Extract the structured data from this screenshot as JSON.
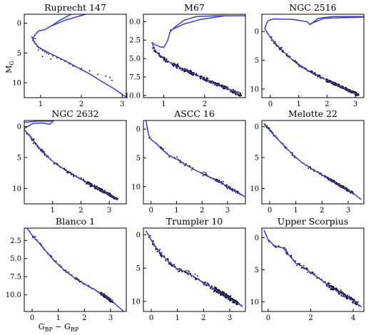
{
  "figure": {
    "ylabel": "M_G",
    "xlabel": "G_BP − G_RP",
    "colors": {
      "model": "#3b3bd6",
      "stars": "#000000",
      "frame": "#000000"
    }
  },
  "chart_data": [
    {
      "type": "scatter",
      "title": "Ruprecht 147",
      "xlim": [
        0.6,
        3.1
      ],
      "ylim": [
        12.5,
        -1.5
      ],
      "xticks": [
        1,
        2,
        3
      ],
      "yticks": [
        0,
        5,
        10
      ],
      "model": [
        [
          0.78,
          2.2
        ],
        [
          0.85,
          3.3
        ],
        [
          0.95,
          4.0
        ],
        [
          1.1,
          4.6
        ],
        [
          1.3,
          5.3
        ],
        [
          1.6,
          6.3
        ],
        [
          2.0,
          7.8
        ],
        [
          2.2,
          8.5
        ],
        [
          2.5,
          9.8
        ],
        [
          2.8,
          11.0
        ],
        [
          3.1,
          12.4
        ]
      ],
      "model_upper": [
        [
          0.8,
          3.0
        ],
        [
          0.85,
          2.1
        ],
        [
          0.95,
          1.3
        ],
        [
          1.1,
          1.1
        ],
        [
          1.25,
          0.5
        ],
        [
          1.45,
          -0.4
        ],
        [
          1.75,
          -1.5
        ]
      ],
      "model_upper2": [
        [
          1.25,
          0.5
        ],
        [
          1.6,
          -0.5
        ],
        [
          2.1,
          -1.5
        ]
      ],
      "stars": [
        [
          0.8,
          2.4
        ],
        [
          0.82,
          2.8
        ],
        [
          0.85,
          3.1
        ],
        [
          0.88,
          3.4
        ],
        [
          0.9,
          3.6
        ],
        [
          0.92,
          3.9
        ],
        [
          0.95,
          4.1
        ],
        [
          1.0,
          4.3
        ],
        [
          1.05,
          4.6
        ],
        [
          1.1,
          4.8
        ],
        [
          1.15,
          5.0
        ],
        [
          1.2,
          5.2
        ],
        [
          1.3,
          5.5
        ],
        [
          1.4,
          5.8
        ],
        [
          1.5,
          6.1
        ],
        [
          1.6,
          6.4
        ],
        [
          1.7,
          6.8
        ],
        [
          1.8,
          7.2
        ],
        [
          2.0,
          7.6
        ],
        [
          2.2,
          8.0
        ],
        [
          2.4,
          8.6
        ],
        [
          2.6,
          8.9
        ],
        [
          2.7,
          9.1
        ],
        [
          2.75,
          9.6
        ],
        [
          1.05,
          5.6
        ],
        [
          1.25,
          6.0
        ],
        [
          0.95,
          4.5
        ],
        [
          0.87,
          2.6
        ]
      ]
    },
    {
      "type": "scatter",
      "title": "M67",
      "xlim": [
        0.5,
        3.0
      ],
      "ylim": [
        10.3,
        -1.0
      ],
      "xticks": [
        1,
        2
      ],
      "yticks": [
        0.0,
        2.5,
        5.0,
        7.5,
        10.0
      ],
      "model": [
        [
          0.72,
          2.8
        ],
        [
          0.75,
          3.6
        ],
        [
          0.85,
          4.3
        ],
        [
          1.0,
          5.0
        ],
        [
          1.2,
          5.7
        ],
        [
          1.5,
          6.5
        ],
        [
          1.9,
          7.5
        ],
        [
          2.3,
          8.5
        ],
        [
          2.6,
          9.2
        ],
        [
          2.9,
          10.0
        ]
      ],
      "model_upper": [
        [
          0.7,
          2.8
        ],
        [
          0.78,
          3.1
        ],
        [
          0.9,
          3.4
        ],
        [
          1.0,
          3.5
        ],
        [
          1.1,
          2.5
        ],
        [
          1.15,
          1.4
        ],
        [
          1.3,
          0.6
        ],
        [
          1.5,
          -0.2
        ],
        [
          1.8,
          -0.7
        ],
        [
          2.3,
          -0.8
        ],
        [
          3.0,
          -0.8
        ]
      ],
      "model_upper2": [
        [
          1.15,
          1.2
        ],
        [
          1.5,
          0.3
        ],
        [
          1.9,
          -0.3
        ],
        [
          2.5,
          -0.8
        ]
      ],
      "stars": "m67"
    },
    {
      "type": "scatter",
      "title": "NGC 2516",
      "xlim": [
        -0.3,
        3.3
      ],
      "ylim": [
        11.5,
        -3.0
      ],
      "xticks": [
        0,
        1,
        2,
        3
      ],
      "yticks": [
        0,
        5,
        10
      ],
      "model": [
        [
          -0.2,
          -0.5
        ],
        [
          0.0,
          1.0
        ],
        [
          0.2,
          2.2
        ],
        [
          0.4,
          3.2
        ],
        [
          0.6,
          4.1
        ],
        [
          0.8,
          5.0
        ],
        [
          1.0,
          5.8
        ],
        [
          1.3,
          6.7
        ],
        [
          1.6,
          7.5
        ],
        [
          2.0,
          8.5
        ],
        [
          2.4,
          9.4
        ],
        [
          2.8,
          10.3
        ],
        [
          3.1,
          11.0
        ]
      ],
      "model_upper": [
        [
          -0.2,
          -0.5
        ],
        [
          -0.1,
          -1.8
        ],
        [
          0.1,
          -2.2
        ],
        [
          0.8,
          -2.1
        ],
        [
          1.3,
          -1.7
        ],
        [
          1.4,
          -1.2
        ],
        [
          1.7,
          -2.3
        ],
        [
          2.2,
          -2.6
        ],
        [
          3.3,
          -2.6
        ]
      ],
      "model_upper2": [
        [
          1.4,
          -1.3
        ],
        [
          1.9,
          -2.3
        ],
        [
          3.3,
          -2.5
        ]
      ],
      "stars": "ngc2516"
    },
    {
      "type": "scatter",
      "title": "NGC 2632",
      "xlim": [
        0.0,
        3.6
      ],
      "ylim": [
        12.5,
        -1.0
      ],
      "xticks": [
        1,
        2,
        3
      ],
      "yticks": [
        0,
        5,
        10
      ],
      "model": [
        [
          0.0,
          0.5
        ],
        [
          0.2,
          1.5
        ],
        [
          0.4,
          2.8
        ],
        [
          0.7,
          4.3
        ],
        [
          1.0,
          5.6
        ],
        [
          1.4,
          6.9
        ],
        [
          1.8,
          8.0
        ],
        [
          2.2,
          9.0
        ],
        [
          2.6,
          10.0
        ],
        [
          3.0,
          11.0
        ],
        [
          3.3,
          11.8
        ]
      ],
      "model_upper": [
        [
          0.0,
          0.3
        ],
        [
          0.3,
          -0.5
        ],
        [
          0.6,
          -0.6
        ],
        [
          0.9,
          -0.4
        ],
        [
          1.05,
          -1.0
        ]
      ],
      "model_upper2": [
        [
          0.0,
          -0.7
        ],
        [
          0.5,
          -0.9
        ],
        [
          1.0,
          -0.9
        ]
      ],
      "stars": "ngc2632"
    },
    {
      "type": "scatter",
      "title": "ASCC 16",
      "xlim": [
        -0.3,
        3.7
      ],
      "ylim": [
        13.0,
        -1.5
      ],
      "xticks": [
        0,
        1,
        2,
        3
      ],
      "yticks": [
        0,
        5,
        10
      ],
      "model": [
        [
          -0.2,
          -1.5
        ],
        [
          -0.1,
          1.0
        ],
        [
          0.0,
          1.8
        ],
        [
          0.2,
          2.5
        ],
        [
          0.5,
          3.8
        ],
        [
          0.7,
          4.6
        ],
        [
          1.0,
          5.2
        ],
        [
          1.4,
          6.3
        ],
        [
          1.8,
          7.3
        ],
        [
          2.2,
          8.1
        ],
        [
          2.6,
          9.0
        ],
        [
          3.0,
          10.0
        ],
        [
          3.4,
          11.0
        ],
        [
          3.7,
          11.8
        ]
      ],
      "stars": "ascc16"
    },
    {
      "type": "scatter",
      "title": "Melotte 22",
      "xlim": [
        -0.3,
        3.6
      ],
      "ylim": [
        12.5,
        -1.0
      ],
      "xticks": [
        0,
        1,
        2,
        3
      ],
      "yticks": [
        0,
        5,
        10
      ],
      "model": [
        [
          -0.2,
          -0.5
        ],
        [
          0.0,
          0.6
        ],
        [
          0.3,
          2.0
        ],
        [
          0.6,
          3.3
        ],
        [
          0.9,
          4.6
        ],
        [
          1.2,
          5.7
        ],
        [
          1.6,
          6.8
        ],
        [
          2.0,
          7.8
        ],
        [
          2.4,
          8.8
        ],
        [
          2.8,
          9.8
        ],
        [
          3.2,
          10.8
        ],
        [
          3.5,
          11.8
        ]
      ],
      "stars": "mel22"
    },
    {
      "type": "scatter",
      "title": "Blanco 1",
      "xlim": [
        -0.3,
        3.6
      ],
      "ylim": [
        12.3,
        0.8
      ],
      "xticks": [
        0,
        1,
        2,
        3
      ],
      "yticks": [
        2.5,
        5.0,
        7.5,
        10.0
      ],
      "model": [
        [
          -0.2,
          0.8
        ],
        [
          0.0,
          1.8
        ],
        [
          0.3,
          3.0
        ],
        [
          0.6,
          4.3
        ],
        [
          0.9,
          5.5
        ],
        [
          1.2,
          6.5
        ],
        [
          1.6,
          7.6
        ],
        [
          2.0,
          8.5
        ],
        [
          2.4,
          9.3
        ],
        [
          2.8,
          10.2
        ],
        [
          3.1,
          11.0
        ],
        [
          3.5,
          12.3
        ]
      ],
      "stars": "blanco1"
    },
    {
      "type": "scatter",
      "title": "Trumpler 10",
      "xlim": [
        -0.3,
        3.6
      ],
      "ylim": [
        11.5,
        -1.0
      ],
      "xticks": [
        0,
        1,
        2,
        3
      ],
      "yticks": [
        0,
        5,
        10
      ],
      "model": [
        [
          -0.2,
          -0.6
        ],
        [
          0.0,
          0.8
        ],
        [
          0.2,
          2.0
        ],
        [
          0.4,
          3.0
        ],
        [
          0.7,
          4.2
        ],
        [
          1.0,
          5.2
        ],
        [
          1.3,
          5.5
        ],
        [
          1.6,
          6.2
        ],
        [
          2.0,
          7.2
        ],
        [
          2.4,
          8.1
        ],
        [
          2.8,
          9.0
        ],
        [
          3.2,
          10.0
        ],
        [
          3.5,
          10.8
        ]
      ],
      "stars": "trumpler10"
    },
    {
      "type": "scatter",
      "title": "Upper Scorpius",
      "xlim": [
        -0.3,
        4.5
      ],
      "ylim": [
        11.5,
        -1.5
      ],
      "xticks": [
        0,
        2,
        4
      ],
      "yticks": [
        0,
        5,
        10
      ],
      "model": [
        [
          -0.2,
          -1.2
        ],
        [
          0.0,
          0.3
        ],
        [
          0.3,
          1.3
        ],
        [
          0.7,
          1.6
        ],
        [
          1.0,
          2.8
        ],
        [
          1.3,
          4.0
        ],
        [
          1.6,
          4.5
        ],
        [
          2.0,
          5.4
        ],
        [
          2.5,
          6.6
        ],
        [
          3.0,
          7.8
        ],
        [
          3.5,
          8.8
        ],
        [
          4.0,
          9.8
        ],
        [
          4.4,
          10.8
        ]
      ],
      "stars": "usco"
    }
  ]
}
